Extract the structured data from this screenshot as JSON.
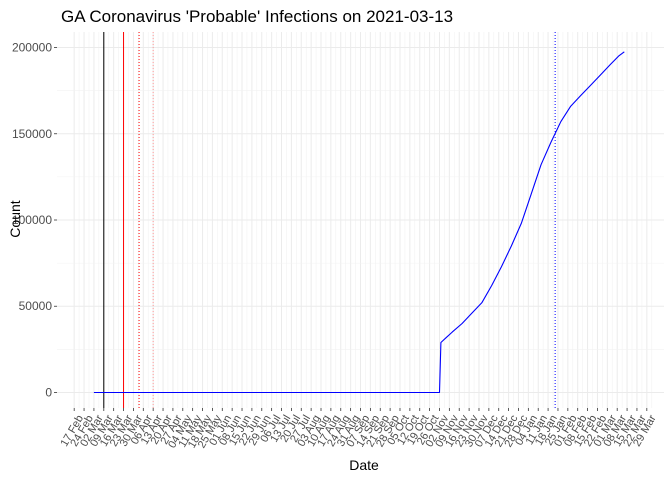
{
  "chart_data": {
    "type": "line",
    "title": "GA Coronavirus 'Probable' Infections on 2021-03-13",
    "xlabel": "Date",
    "ylabel": "Count",
    "x_range": [
      "2020-02-17",
      "2021-03-29"
    ],
    "ylim": [
      -9000,
      209000
    ],
    "y_ticks": [
      0,
      50000,
      100000,
      150000,
      200000
    ],
    "y_tick_labels": [
      "0",
      "50000",
      "100000",
      "150000",
      "200000"
    ],
    "x_ticks": [
      "2020-02-17",
      "2020-02-24",
      "2020-03-02",
      "2020-03-09",
      "2020-03-16",
      "2020-03-23",
      "2020-03-30",
      "2020-04-06",
      "2020-04-13",
      "2020-04-20",
      "2020-04-27",
      "2020-05-04",
      "2020-05-11",
      "2020-05-18",
      "2020-05-25",
      "2020-06-01",
      "2020-06-08",
      "2020-06-15",
      "2020-06-22",
      "2020-06-29",
      "2020-07-06",
      "2020-07-13",
      "2020-07-20",
      "2020-07-27",
      "2020-08-03",
      "2020-08-10",
      "2020-08-17",
      "2020-08-24",
      "2020-08-31",
      "2020-09-07",
      "2020-09-14",
      "2020-09-21",
      "2020-09-28",
      "2020-10-05",
      "2020-10-12",
      "2020-10-19",
      "2020-10-26",
      "2020-11-02",
      "2020-11-09",
      "2020-11-16",
      "2020-11-23",
      "2020-11-30",
      "2020-12-07",
      "2020-12-14",
      "2020-12-21",
      "2020-12-28",
      "2021-01-04",
      "2021-01-11",
      "2021-01-18",
      "2021-01-25",
      "2021-02-01",
      "2021-02-08",
      "2021-02-15",
      "2021-02-22",
      "2021-03-01",
      "2021-03-08",
      "2021-03-15",
      "2021-03-22",
      "2021-03-29"
    ],
    "x_tick_labels": [
      "17 Feb",
      "24 Feb",
      "02 Mar",
      "09 Mar",
      "16 Mar",
      "23 Mar",
      "30 Mar",
      "06 Apr",
      "13 Apr",
      "20 Apr",
      "27 Apr",
      "04 May",
      "11 May",
      "18 May",
      "25 May",
      "01 Jun",
      "08 Jun",
      "15 Jun",
      "22 Jun",
      "29 Jun",
      "06 Jul",
      "13 Jul",
      "20 Jul",
      "27 Jul",
      "03 Aug",
      "10 Aug",
      "17 Aug",
      "24 Aug",
      "31 Aug",
      "07 Sep",
      "14 Sep",
      "21 Sep",
      "28 Sep",
      "05 Oct",
      "12 Oct",
      "19 Oct",
      "26 Oct",
      "02 Nov",
      "09 Nov",
      "16 Nov",
      "23 Nov",
      "30 Nov",
      "07 Dec",
      "14 Dec",
      "21 Dec",
      "28 Dec",
      "04 Jan",
      "11 Jan",
      "18 Jan",
      "25 Jan",
      "01 Feb",
      "08 Feb",
      "15 Feb",
      "22 Feb",
      "01 Mar",
      "08 Mar",
      "15 Mar",
      "22 Mar",
      "29 Mar"
    ],
    "grid": true,
    "series": [
      {
        "color": "#0000ff",
        "x": [
          "2020-03-02",
          "2020-11-02",
          "2020-11-03",
          "2020-11-07",
          "2020-11-11",
          "2020-11-18",
          "2020-11-25",
          "2020-12-02",
          "2020-12-09",
          "2020-12-16",
          "2020-12-23",
          "2020-12-30",
          "2021-01-06",
          "2021-01-13",
          "2021-01-20",
          "2021-01-27",
          "2021-02-03",
          "2021-02-10",
          "2021-02-17",
          "2021-02-24",
          "2021-03-03",
          "2021-03-09",
          "2021-03-13"
        ],
        "y": [
          0,
          0,
          29000,
          32000,
          35000,
          40000,
          46000,
          52000,
          62000,
          73000,
          85000,
          98000,
          115000,
          132000,
          145000,
          157000,
          166000,
          172000,
          178000,
          184000,
          190000,
          195000,
          197500
        ]
      }
    ],
    "reference_lines": [
      {
        "x": "2020-03-09",
        "color": "#000000",
        "style": "solid"
      },
      {
        "x": "2020-03-23",
        "color": "#ff0000",
        "style": "solid"
      },
      {
        "x": "2020-04-03",
        "color": "#ff0000",
        "style": "dotted"
      },
      {
        "x": "2020-04-13",
        "color": "#ff9999",
        "style": "dotted"
      },
      {
        "x": "2021-01-23",
        "color": "#0000ff",
        "style": "dotted"
      }
    ]
  }
}
